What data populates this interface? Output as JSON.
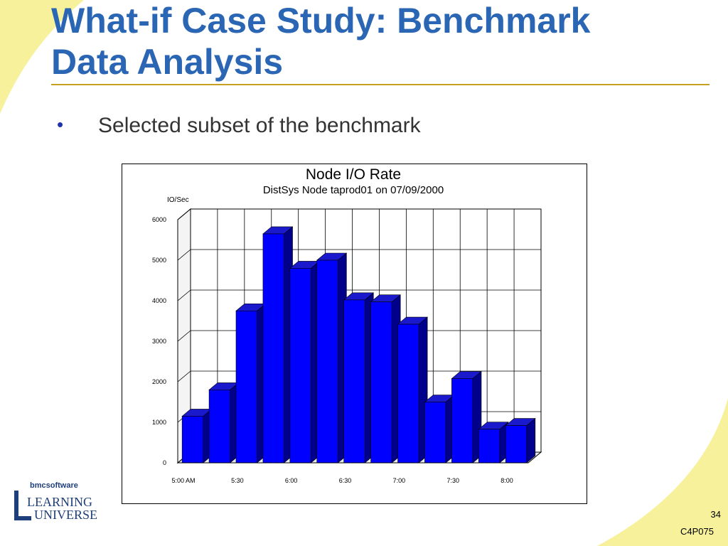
{
  "slide": {
    "title_line1": "What-if Case Study: Benchmark",
    "title_line2": "Data Analysis",
    "bullet": "Selected subset of the benchmark",
    "page_number": "34",
    "course_code": "C4P075",
    "logo": {
      "brand": "bmcsoftware",
      "line1": "LEARNING",
      "line2": "UNIVERSE"
    }
  },
  "colors": {
    "title": "#2a66b4",
    "bar_front": "#0000ff",
    "bar_top": "#1a1acc",
    "bar_side": "#00008a",
    "deco_yellow": "#f6f19a"
  },
  "chart_data": {
    "type": "bar",
    "title": "Node I/O Rate",
    "subtitle": "DistSys Node taprod01 on 07/09/2000",
    "ylabel": "IO/Sec",
    "xlabel": "",
    "ylim": [
      0,
      6000
    ],
    "yticks": [
      0,
      1000,
      2000,
      3000,
      4000,
      5000,
      6000
    ],
    "xtick_labels": [
      "5:00 AM",
      "5:30",
      "6:00",
      "6:30",
      "7:00",
      "7:30",
      "8:00"
    ],
    "values": [
      1150,
      1800,
      3750,
      5650,
      4800,
      5000,
      4020,
      3970,
      3420,
      1500,
      2080,
      830,
      920
    ],
    "grid": true,
    "legend": "none"
  }
}
